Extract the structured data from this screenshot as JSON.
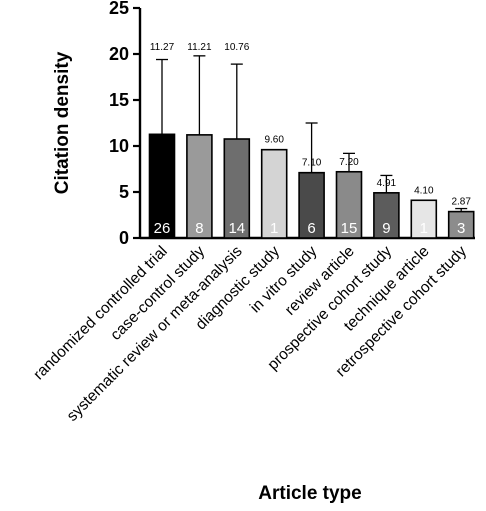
{
  "chart_data": {
    "type": "bar",
    "title": "",
    "xlabel": "Article type",
    "ylabel": "Citation density",
    "ylim": [
      0,
      25
    ],
    "yticks": [
      0,
      5,
      10,
      15,
      20,
      25
    ],
    "grid": false,
    "legend": "none",
    "categories": [
      "randomized controlled trial",
      "case-control study",
      "systematic review or meta-analysis",
      "diagnostic study",
      "in vitro study",
      "review article",
      "prospective cohort study",
      "technique article",
      "retrospective cohort study"
    ],
    "values": [
      11.27,
      11.21,
      10.76,
      9.6,
      7.1,
      7.2,
      4.91,
      4.1,
      2.87
    ],
    "value_labels": [
      "11.27",
      "11.21",
      "10.76",
      "9.60",
      "7.10",
      "7.20",
      "4.91",
      "4.10",
      "2.87"
    ],
    "error_upper": [
      19.4,
      19.8,
      18.9,
      null,
      12.5,
      9.2,
      6.8,
      null,
      3.2
    ],
    "counts": [
      "26",
      "8",
      "14",
      "1",
      "6",
      "15",
      "9",
      "1",
      "3"
    ],
    "bar_colors": [
      "#000000",
      "#9a9a9a",
      "#6e6e6e",
      "#d4d4d4",
      "#4a4a4a",
      "#8a8a8a",
      "#5c5c5c",
      "#e6e6e6",
      "#8c8c8c"
    ]
  }
}
